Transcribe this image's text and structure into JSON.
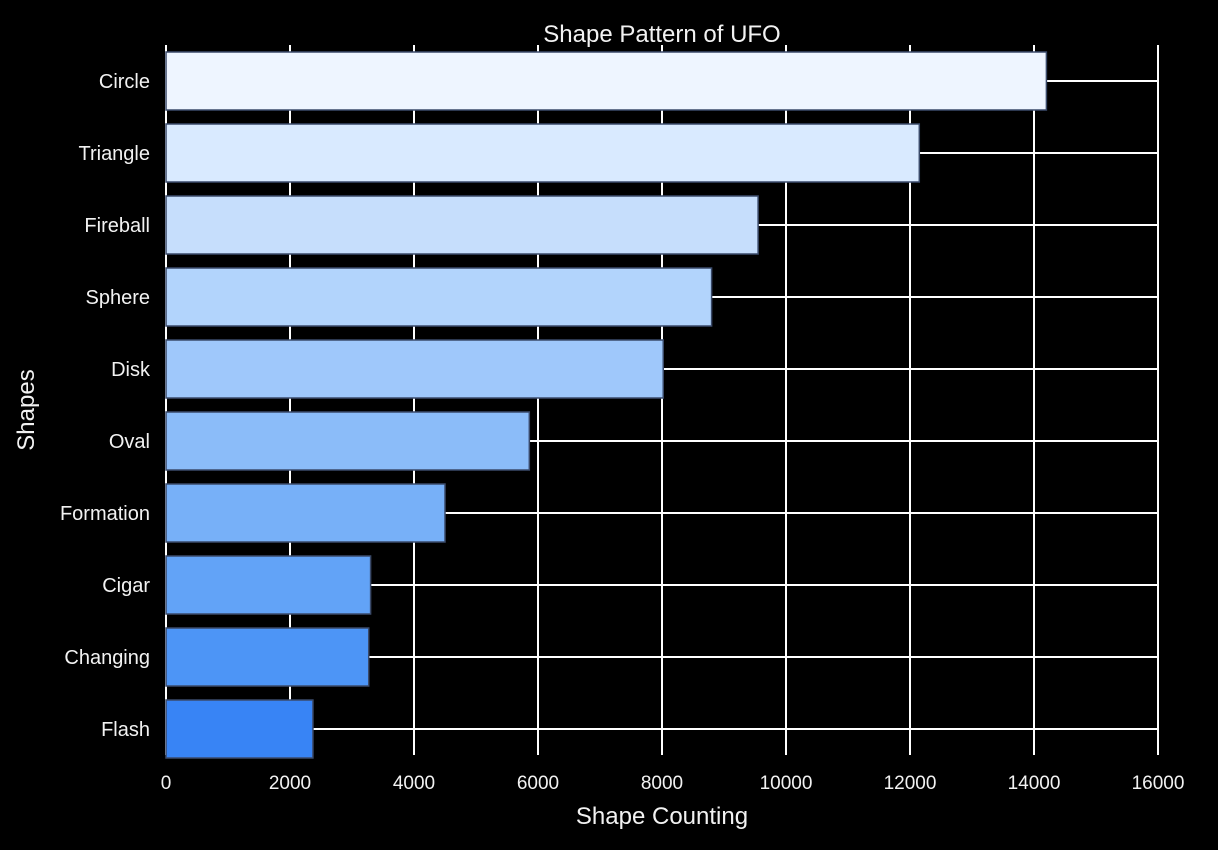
{
  "chart_data": {
    "type": "bar",
    "orientation": "horizontal",
    "title": "Shape Pattern of UFO",
    "xlabel": "Shape Counting",
    "ylabel": "Shapes",
    "categories": [
      "Circle",
      "Triangle",
      "Fireball",
      "Sphere",
      "Disk",
      "Oval",
      "Formation",
      "Cigar",
      "Changing",
      "Flash"
    ],
    "values": [
      14200,
      12150,
      9550,
      8800,
      8020,
      5860,
      4500,
      3300,
      3270,
      2370
    ],
    "xlim": [
      0,
      16000
    ],
    "xticks": [
      0,
      2000,
      4000,
      6000,
      8000,
      10000,
      12000,
      14000,
      16000
    ],
    "grid": true,
    "background": "#000000",
    "bar_colors": [
      "#eef5ff",
      "#d9eaff",
      "#c6defc",
      "#b2d4fc",
      "#9fc8fb",
      "#8bbcf9",
      "#77b0f8",
      "#62a3f7",
      "#4d95f6",
      "#3884f5"
    ]
  }
}
